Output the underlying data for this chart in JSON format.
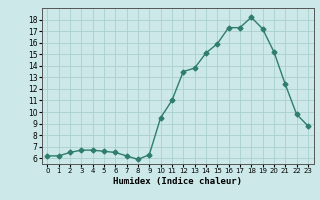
{
  "x": [
    0,
    1,
    2,
    3,
    4,
    5,
    6,
    7,
    8,
    9,
    10,
    11,
    12,
    13,
    14,
    15,
    16,
    17,
    18,
    19,
    20,
    21,
    22,
    23
  ],
  "y": [
    6.2,
    6.2,
    6.5,
    6.7,
    6.7,
    6.6,
    6.5,
    6.2,
    5.9,
    6.3,
    9.5,
    11.0,
    13.5,
    13.8,
    15.1,
    15.9,
    17.3,
    17.3,
    18.2,
    17.2,
    15.2,
    12.4,
    9.8,
    8.8
  ],
  "line_color": "#2e7d6e",
  "marker": "D",
  "marker_size": 2.5,
  "bg_color": "#cce8e8",
  "grid_color": "#aacfcf",
  "xlabel": "Humidex (Indice chaleur)",
  "xlim": [
    -0.5,
    23.5
  ],
  "ylim": [
    5.5,
    19.0
  ],
  "yticks": [
    6,
    7,
    8,
    9,
    10,
    11,
    12,
    13,
    14,
    15,
    16,
    17,
    18
  ],
  "xtick_labels": [
    "0",
    "1",
    "2",
    "3",
    "4",
    "5",
    "6",
    "7",
    "8",
    "9",
    "10",
    "11",
    "12",
    "13",
    "14",
    "15",
    "16",
    "17",
    "18",
    "19",
    "20",
    "21",
    "22",
    "23"
  ]
}
